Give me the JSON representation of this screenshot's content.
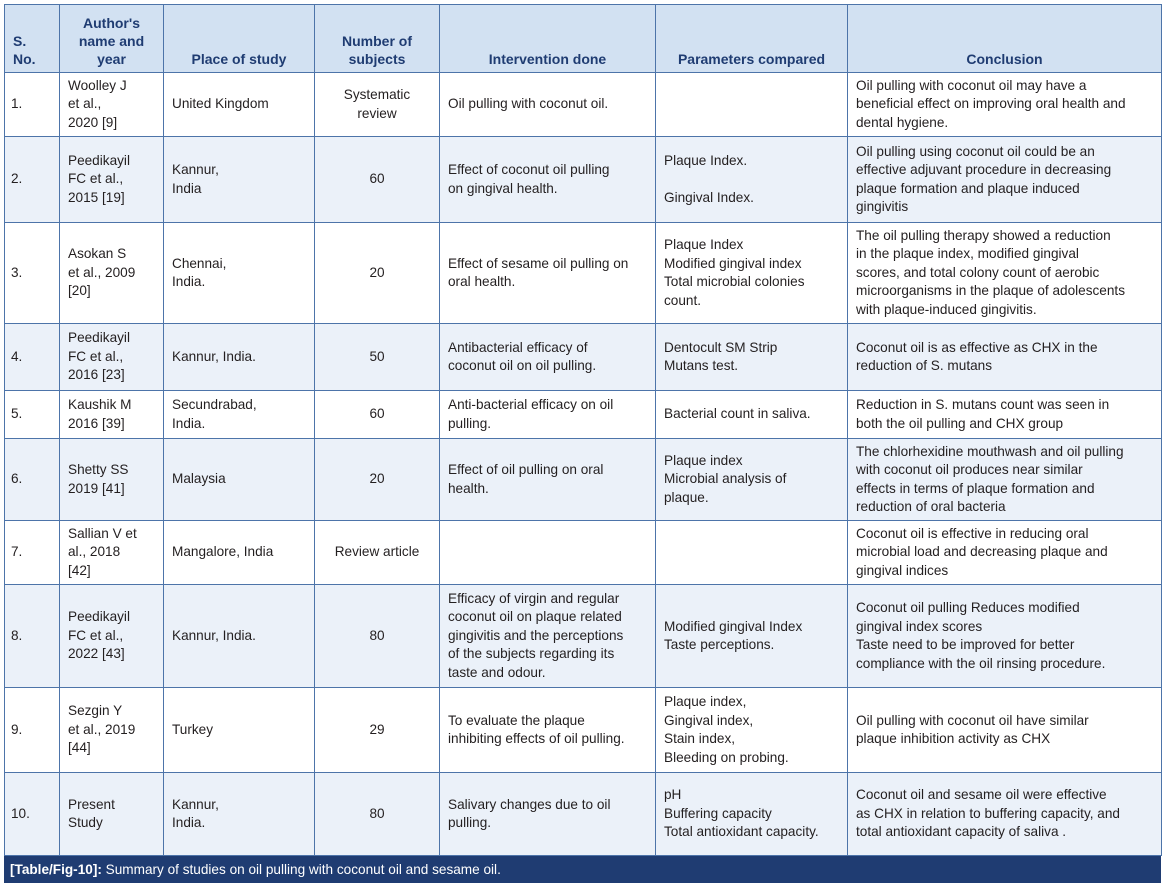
{
  "headers": {
    "sno": [
      "S.",
      "No."
    ],
    "author": [
      "Author's",
      "name and",
      "year"
    ],
    "place": "Place of study",
    "subjects": [
      "Number of",
      "subjects"
    ],
    "intervention": "Intervention done",
    "parameters": "Parameters compared",
    "conclusion": "Conclusion"
  },
  "rows": [
    {
      "sno": "1.",
      "author": [
        "Woolley J",
        "et al.,",
        "2020 [9]"
      ],
      "place": [
        "United Kingdom"
      ],
      "subjects": [
        "Systematic",
        "review"
      ],
      "intervention": [
        "Oil pulling with coconut oil."
      ],
      "parameters": [],
      "conclusion": [
        "Oil pulling with coconut oil may have a",
        "beneficial effect on improving oral health and",
        "dental hygiene."
      ]
    },
    {
      "sno": "2.",
      "author": [
        "Peedikayil",
        "FC et al.,",
        "2015 [19]"
      ],
      "place": [
        "Kannur,",
        "India"
      ],
      "subjects": [
        "60"
      ],
      "intervention": [
        "Effect of coconut oil pulling",
        "on gingival health."
      ],
      "parameters": [
        "Plaque Index.",
        "",
        "Gingival Index."
      ],
      "conclusion": [
        "Oil pulling using coconut oil could be an",
        "effective adjuvant procedure in decreasing",
        "plaque formation and plaque induced",
        "gingivitis"
      ]
    },
    {
      "sno": "3.",
      "author": [
        "Asokan S",
        "et al., 2009",
        "[20]"
      ],
      "place": [
        "Chennai,",
        "India."
      ],
      "subjects": [
        "20"
      ],
      "intervention": [
        "Effect of sesame oil pulling on",
        "oral health."
      ],
      "parameters": [
        "Plaque Index",
        "Modified gingival index",
        "Total microbial colonies",
        "count."
      ],
      "conclusion": [
        "The oil pulling therapy showed a reduction",
        "in the plaque index, modified gingival",
        "scores, and total colony count of aerobic",
        "microorganisms in the plaque of adolescents",
        "with plaque-induced gingivitis."
      ]
    },
    {
      "sno": "4.",
      "author": [
        "Peedikayil",
        "FC et al.,",
        "2016 [23]"
      ],
      "place": [
        "Kannur, India."
      ],
      "subjects": [
        "50"
      ],
      "intervention": [
        "Antibacterial efficacy of",
        "coconut oil on oil pulling."
      ],
      "parameters": [
        "Dentocult SM Strip",
        "Mutans test."
      ],
      "conclusion": [
        "Coconut oil is as effective as CHX in the",
        "reduction of S. mutans"
      ]
    },
    {
      "sno": "5.",
      "author": [
        "Kaushik M",
        "2016 [39]"
      ],
      "place": [
        "Secundrabad,",
        "India."
      ],
      "subjects": [
        "60"
      ],
      "intervention": [
        "Anti-bacterial efficacy on oil",
        "pulling."
      ],
      "parameters": [
        "Bacterial count in saliva."
      ],
      "conclusion": [
        "Reduction in S. mutans count was seen in",
        "both the oil pulling and CHX group"
      ]
    },
    {
      "sno": "6.",
      "author": [
        "Shetty SS",
        "2019 [41]"
      ],
      "place": [
        "Malaysia"
      ],
      "subjects": [
        "20"
      ],
      "intervention": [
        "Effect of oil pulling on oral",
        "health."
      ],
      "parameters": [
        "Plaque index",
        "Microbial analysis of",
        "plaque."
      ],
      "conclusion": [
        "The chlorhexidine mouthwash and oil pulling",
        "with coconut oil produces near similar",
        "effects in terms of plaque formation and",
        "reduction of oral bacteria"
      ]
    },
    {
      "sno": "7.",
      "author": [
        "Sallian V et",
        "al., 2018",
        "[42]"
      ],
      "place": [
        "Mangalore, India"
      ],
      "subjects": [
        "Review article"
      ],
      "intervention": [],
      "parameters": [],
      "conclusion": [
        "Coconut oil is effective in reducing oral",
        "microbial load and decreasing plaque and",
        "gingival indices"
      ]
    },
    {
      "sno": "8.",
      "author": [
        "Peedikayil",
        "FC et al.,",
        "2022 [43]"
      ],
      "place": [
        "Kannur, India."
      ],
      "subjects": [
        "80"
      ],
      "intervention": [
        "Efficacy of virgin and regular",
        "coconut oil on plaque related",
        "gingivitis and the perceptions",
        "of the subjects regarding its",
        "taste and odour."
      ],
      "parameters": [
        "Modified gingival Index",
        "Taste perceptions."
      ],
      "conclusion": [
        "Coconut oil pulling Reduces modified",
        "gingival index scores",
        "Taste need to be improved for better",
        "compliance with the oil rinsing procedure."
      ]
    },
    {
      "sno": "9.",
      "author": [
        "Sezgin Y",
        "et al., 2019",
        "[44]"
      ],
      "place": [
        "Turkey"
      ],
      "subjects": [
        "29"
      ],
      "intervention": [
        "To evaluate the plaque",
        "inhibiting effects of oil pulling."
      ],
      "parameters": [
        "Plaque index,",
        "Gingival index,",
        "Stain index,",
        "Bleeding on probing."
      ],
      "conclusion": [
        "Oil pulling with coconut oil have similar",
        "plaque inhibition activity as CHX"
      ]
    },
    {
      "sno": "10.",
      "author": [
        "Present",
        "Study"
      ],
      "place": [
        "Kannur,",
        "India."
      ],
      "subjects": [
        "80"
      ],
      "intervention": [
        "Salivary changes due to oil",
        "pulling."
      ],
      "parameters": [
        "pH",
        "Buffering capacity",
        "Total antioxidant capacity."
      ],
      "conclusion": [
        "Coconut oil and sesame oil were effective",
        "as CHX in relation to buffering capacity, and",
        "total antioxidant capacity of saliva ."
      ]
    }
  ],
  "caption": {
    "label": "[Table/Fig-10]:",
    "text": " Summary of studies on oil pulling with coconut oil and sesame oil."
  }
}
